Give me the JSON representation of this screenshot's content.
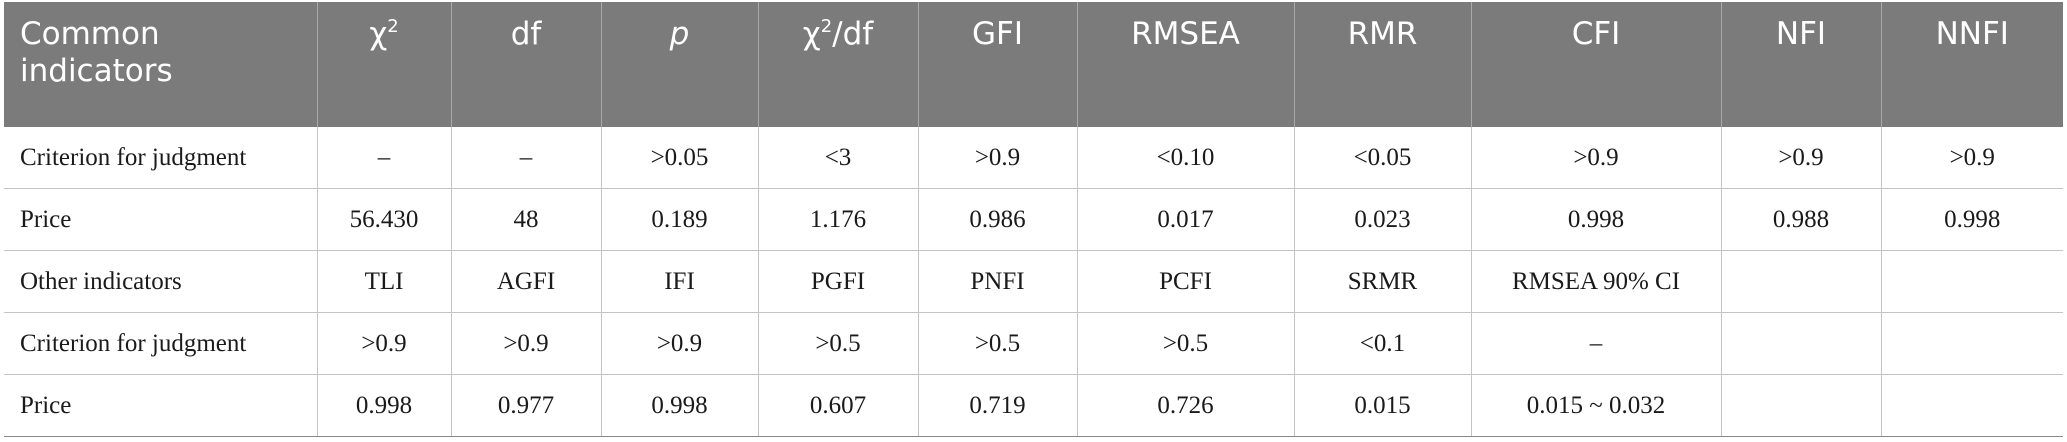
{
  "header": {
    "c0": "Common indicators",
    "c1_base": "χ",
    "c1_sup": "2",
    "c2": "df",
    "c3": "p",
    "c4_base": "χ",
    "c4_sup": "2",
    "c4_tail": "/df",
    "c5": "GFI",
    "c6": "RMSEA",
    "c7": "RMR",
    "c8": "CFI",
    "c9": "NFI",
    "c10": "NNFI"
  },
  "rows": [
    [
      "Criterion for judgment",
      "–",
      "–",
      ">0.05",
      "<3",
      ">0.9",
      "<0.10",
      "<0.05",
      ">0.9",
      ">0.9",
      ">0.9"
    ],
    [
      "Price",
      "56.430",
      "48",
      "0.189",
      "1.176",
      "0.986",
      "0.017",
      "0.023",
      "0.998",
      "0.988",
      "0.998"
    ],
    [
      "Other indicators",
      "TLI",
      "AGFI",
      "IFI",
      "PGFI",
      "PNFI",
      "PCFI",
      "SRMR",
      "RMSEA 90% CI",
      "",
      ""
    ],
    [
      "Criterion for judgment",
      ">0.9",
      ">0.9",
      ">0.9",
      ">0.5",
      ">0.5",
      ">0.5",
      "<0.1",
      "–",
      "",
      ""
    ],
    [
      "Price",
      "0.998",
      "0.977",
      "0.998",
      "0.607",
      "0.719",
      "0.726",
      "0.015",
      "0.015 ~ 0.032",
      "",
      ""
    ]
  ]
}
